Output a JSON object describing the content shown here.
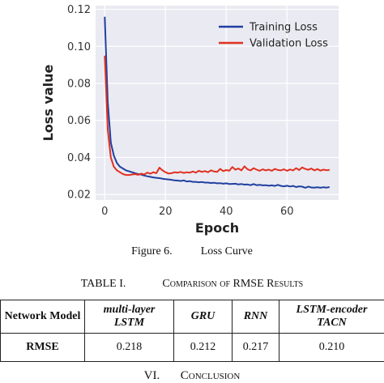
{
  "chart_data": {
    "type": "line",
    "xlabel": "Epoch",
    "ylabel": "Loss value",
    "xlim": [
      -3,
      77
    ],
    "ylim": [
      0.017,
      0.122
    ],
    "x_ticks": [
      0,
      20,
      40,
      60
    ],
    "y_ticks": [
      0.02,
      0.04,
      0.06,
      0.08,
      0.1,
      0.12
    ],
    "y_tick_labels": [
      "0.02",
      "0.04",
      "0.06",
      "0.08",
      "0.10",
      "0.12"
    ],
    "grid": true,
    "legend_position": "top-right",
    "series": [
      {
        "name": "Training Loss",
        "color": "#1f3fa0",
        "x": [
          0,
          1,
          2,
          3,
          4,
          5,
          6,
          7,
          8,
          9,
          10,
          11,
          12,
          13,
          14,
          15,
          16,
          17,
          18,
          19,
          20,
          21,
          22,
          23,
          24,
          25,
          26,
          27,
          28,
          29,
          30,
          31,
          32,
          33,
          34,
          35,
          36,
          37,
          38,
          39,
          40,
          41,
          42,
          43,
          44,
          45,
          46,
          47,
          48,
          49,
          50,
          51,
          52,
          53,
          54,
          55,
          56,
          57,
          58,
          59,
          60,
          61,
          62,
          63,
          64,
          65,
          66,
          67,
          68,
          69,
          70,
          71,
          72,
          73,
          74
        ],
        "values": [
          0.116,
          0.07,
          0.048,
          0.041,
          0.037,
          0.035,
          0.034,
          0.033,
          0.0325,
          0.032,
          0.0315,
          0.031,
          0.0308,
          0.0302,
          0.0298,
          0.0295,
          0.0292,
          0.029,
          0.0288,
          0.0285,
          0.0283,
          0.0281,
          0.0279,
          0.0276,
          0.0275,
          0.0273,
          0.0276,
          0.027,
          0.0272,
          0.0268,
          0.0268,
          0.0266,
          0.0267,
          0.0264,
          0.0264,
          0.0262,
          0.0263,
          0.026,
          0.0261,
          0.0258,
          0.026,
          0.0256,
          0.0257,
          0.0258,
          0.0254,
          0.0256,
          0.0253,
          0.0254,
          0.025,
          0.0256,
          0.025,
          0.0252,
          0.0249,
          0.025,
          0.0247,
          0.0249,
          0.0246,
          0.0252,
          0.0246,
          0.0244,
          0.0247,
          0.0243,
          0.0246,
          0.024,
          0.0244,
          0.0242,
          0.0236,
          0.0242,
          0.0238,
          0.0237,
          0.0239,
          0.0236,
          0.0239,
          0.0237,
          0.024
        ]
      },
      {
        "name": "Validation Loss",
        "color": "#e03020",
        "x": [
          0,
          1,
          2,
          3,
          4,
          5,
          6,
          7,
          8,
          9,
          10,
          11,
          12,
          13,
          14,
          15,
          16,
          17,
          18,
          19,
          20,
          21,
          22,
          23,
          24,
          25,
          26,
          27,
          28,
          29,
          30,
          31,
          32,
          33,
          34,
          35,
          36,
          37,
          38,
          39,
          40,
          41,
          42,
          43,
          44,
          45,
          46,
          47,
          48,
          49,
          50,
          51,
          52,
          53,
          54,
          55,
          56,
          57,
          58,
          59,
          60,
          61,
          62,
          63,
          64,
          65,
          66,
          67,
          68,
          69,
          70,
          71,
          72,
          73,
          74
        ],
        "values": [
          0.095,
          0.055,
          0.04,
          0.035,
          0.033,
          0.032,
          0.031,
          0.0305,
          0.0305,
          0.0308,
          0.031,
          0.0306,
          0.0312,
          0.0308,
          0.0318,
          0.0312,
          0.032,
          0.0315,
          0.0345,
          0.033,
          0.032,
          0.0313,
          0.0315,
          0.032,
          0.0318,
          0.0322,
          0.0316,
          0.032,
          0.0318,
          0.0324,
          0.0318,
          0.0328,
          0.0322,
          0.0326,
          0.032,
          0.033,
          0.0324,
          0.0322,
          0.0338,
          0.0326,
          0.0332,
          0.0328,
          0.0348,
          0.0334,
          0.034,
          0.033,
          0.0352,
          0.0336,
          0.033,
          0.0342,
          0.0334,
          0.0328,
          0.0336,
          0.033,
          0.0334,
          0.0328,
          0.0338,
          0.0332,
          0.033,
          0.0336,
          0.0328,
          0.0335,
          0.033,
          0.0342,
          0.0332,
          0.0346,
          0.0338,
          0.0333,
          0.034,
          0.033,
          0.0337,
          0.0329,
          0.0334,
          0.0331,
          0.0333
        ]
      }
    ]
  },
  "figure_caption": {
    "label": "Figure 6.",
    "text": "Loss Curve"
  },
  "table": {
    "title": "TABLE I.",
    "caption": "Comparison of RMSE Results",
    "headers": [
      "Network Model",
      "multi-layer LSTM",
      "GRU",
      "RNN",
      "LSTM-encoder TACN"
    ],
    "row_label": "RMSE",
    "values": [
      "0.218",
      "0.212",
      "0.217",
      "0.210"
    ]
  },
  "section_heading": {
    "number": "VI.",
    "title": "Conclusion"
  }
}
